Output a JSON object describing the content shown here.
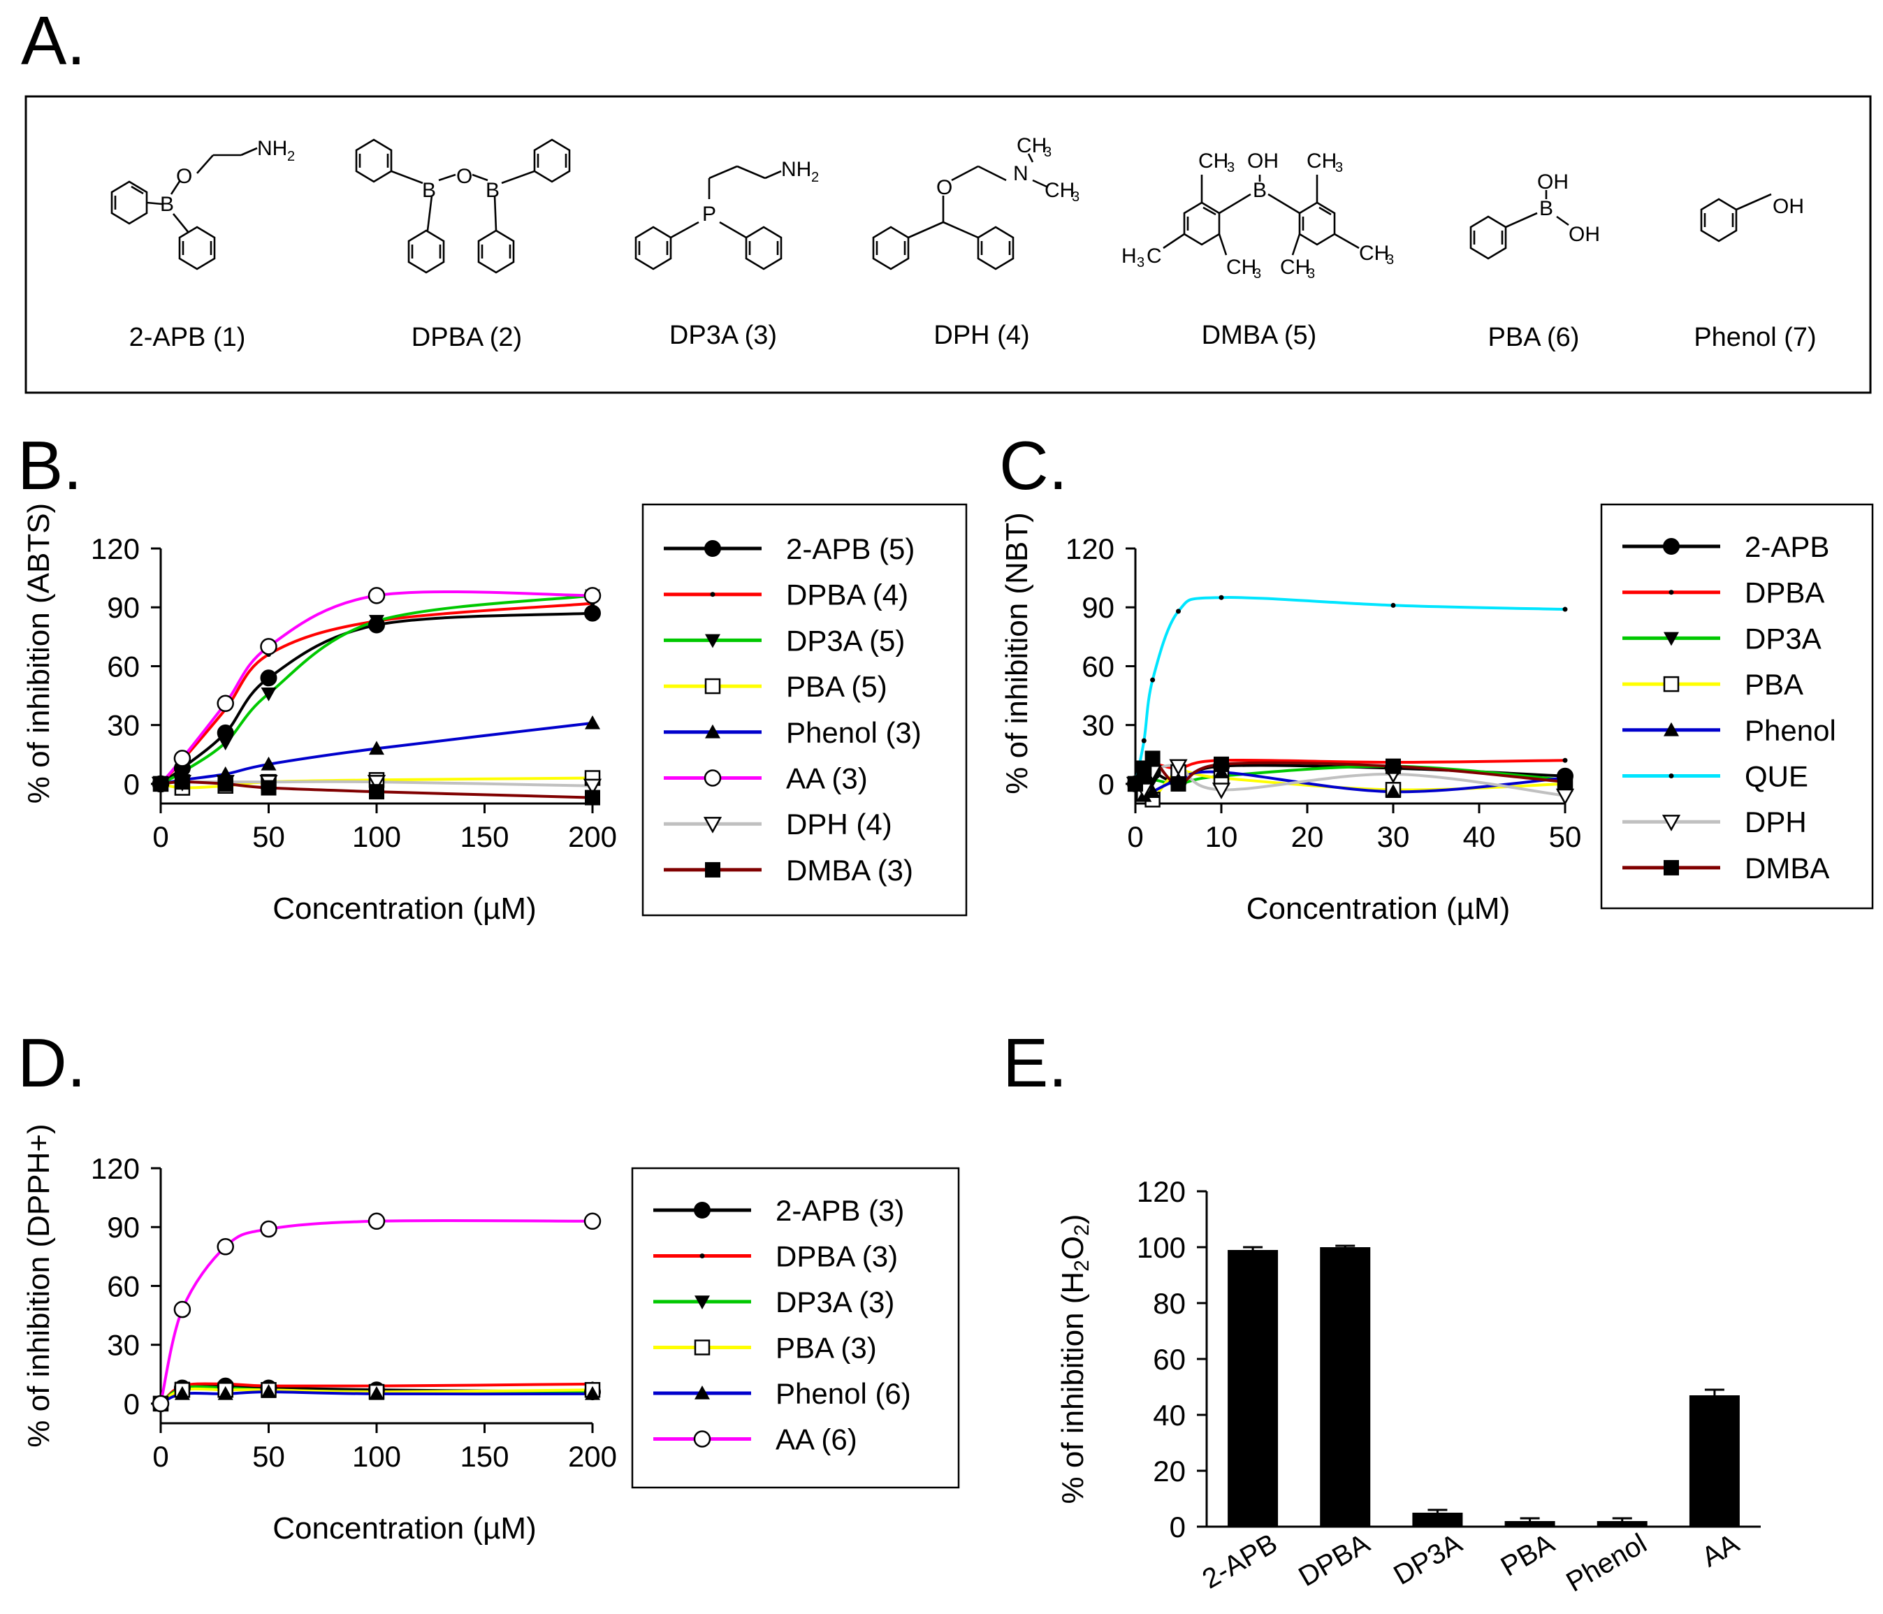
{
  "panels": {
    "A": {
      "letter": "A."
    },
    "B": {
      "letter": "B."
    },
    "C": {
      "letter": "C."
    },
    "D": {
      "letter": "D."
    },
    "E": {
      "letter": "E."
    }
  },
  "structures": {
    "compounds": [
      {
        "label": "2-APB (1)",
        "atoms": [
          "O",
          "NH",
          "2",
          "B"
        ]
      },
      {
        "label": "DPBA (2)",
        "atoms": [
          "B",
          "O",
          "B"
        ]
      },
      {
        "label": "DP3A (3)",
        "atoms": [
          "P",
          "NH",
          "2"
        ]
      },
      {
        "label": "DPH (4)",
        "atoms": [
          "O",
          "N",
          "CH",
          "3",
          "CH",
          "3"
        ]
      },
      {
        "label": "DMBA (5)",
        "atoms": [
          "CH",
          "3",
          "OH",
          "B",
          "CH",
          "3",
          "H",
          "3",
          "C",
          "CH",
          "3",
          "CH",
          "3",
          "CH",
          "3"
        ]
      },
      {
        "label": "PBA (6)",
        "atoms": [
          "OH",
          "B",
          "OH"
        ]
      },
      {
        "label": "Phenol (7)",
        "atoms": [
          "OH"
        ]
      }
    ]
  },
  "colors": {
    "black": "#000000",
    "red": "#ff0000",
    "green": "#00c800",
    "yellow": "#ffff00",
    "blue": "#0000cc",
    "magenta": "#ff00ff",
    "gray": "#c0c0c0",
    "darkred": "#800000",
    "cyan": "#00e5ff"
  },
  "chart_data": [
    {
      "id": "B",
      "type": "line",
      "title": "",
      "xlabel": "Concentration (µM)",
      "ylabel": "% of inhibition (ABTS)",
      "xlim": [
        0,
        200
      ],
      "ylim": [
        -10,
        120
      ],
      "xticks": [
        "0",
        "50",
        "100",
        "150",
        "200"
      ],
      "yticks": [
        "0",
        "30",
        "60",
        "90",
        "120"
      ],
      "xtick_values": [
        0,
        50,
        100,
        150,
        200
      ],
      "ytick_values": [
        0,
        30,
        60,
        90,
        120
      ],
      "legend_placement": "right",
      "series": [
        {
          "name": "2-APB (5)",
          "color": "#000000",
          "marker": "circle-filled",
          "x": [
            0,
            10,
            30,
            50,
            100,
            200
          ],
          "y": [
            0,
            8,
            26,
            54,
            81,
            87
          ]
        },
        {
          "name": "DPBA (4)",
          "color": "#ff0000",
          "marker": "dot",
          "x": [
            0,
            10,
            30,
            50,
            100,
            200
          ],
          "y": [
            0,
            12,
            38,
            66,
            83,
            92
          ]
        },
        {
          "name": "DP3A (5)",
          "color": "#00c800",
          "marker": "triangle-down-filled",
          "x": [
            0,
            10,
            30,
            50,
            100,
            200
          ],
          "y": [
            0,
            6,
            21,
            46,
            83,
            96
          ]
        },
        {
          "name": "PBA (5)",
          "color": "#ffff00",
          "marker": "square-open",
          "x": [
            0,
            10,
            30,
            50,
            100,
            200
          ],
          "y": [
            0,
            -2,
            -1,
            1,
            2,
            3
          ]
        },
        {
          "name": "Phenol (3)",
          "color": "#0000cc",
          "marker": "triangle-up-filled",
          "x": [
            0,
            10,
            30,
            50,
            100,
            200
          ],
          "y": [
            0,
            2,
            5,
            10,
            18,
            31
          ]
        },
        {
          "name": "AA (3)",
          "color": "#ff00ff",
          "marker": "circle-open",
          "x": [
            0,
            10,
            30,
            50,
            100,
            200
          ],
          "y": [
            0,
            13,
            41,
            70,
            96,
            96
          ]
        },
        {
          "name": "DPH (4)",
          "color": "#c0c0c0",
          "marker": "triangle-down-open",
          "x": [
            0,
            10,
            30,
            50,
            100,
            200
          ],
          "y": [
            0,
            1,
            1,
            1,
            1,
            -1
          ]
        },
        {
          "name": "DMBA (3)",
          "color": "#800000",
          "marker": "square-filled",
          "x": [
            0,
            10,
            30,
            50,
            100,
            200
          ],
          "y": [
            0,
            1,
            0,
            -2,
            -4,
            -7
          ]
        }
      ]
    },
    {
      "id": "C",
      "type": "line",
      "title": "",
      "xlabel": "Concentration (µM)",
      "ylabel": "% of inhibition (NBT)",
      "xlim": [
        0,
        50
      ],
      "ylim": [
        -10,
        120
      ],
      "xticks": [
        "0",
        "10",
        "20",
        "30",
        "40",
        "50"
      ],
      "yticks": [
        "0",
        "30",
        "60",
        "90",
        "120"
      ],
      "xtick_values": [
        0,
        10,
        20,
        30,
        40,
        50
      ],
      "ytick_values": [
        0,
        30,
        60,
        90,
        120
      ],
      "legend_placement": "right",
      "series": [
        {
          "name": "2-APB",
          "color": "#000000",
          "marker": "circle-filled",
          "x": [
            0,
            1,
            2,
            5,
            10,
            30,
            50
          ],
          "y": [
            0,
            3,
            6,
            1,
            9,
            8,
            4
          ]
        },
        {
          "name": "DPBA",
          "color": "#ff0000",
          "marker": "dot",
          "x": [
            0,
            1,
            2,
            5,
            10,
            30,
            50
          ],
          "y": [
            0,
            4,
            10,
            8,
            12,
            11,
            12
          ]
        },
        {
          "name": "DP3A",
          "color": "#00c800",
          "marker": "triangle-down-filled",
          "x": [
            0,
            1,
            2,
            5,
            10,
            30,
            50
          ],
          "y": [
            0,
            -2,
            2,
            0,
            4,
            9,
            2
          ]
        },
        {
          "name": "PBA",
          "color": "#ffff00",
          "marker": "square-open",
          "x": [
            0,
            1,
            2,
            5,
            10,
            30,
            50
          ],
          "y": [
            0,
            -5,
            -8,
            6,
            3,
            -3,
            0
          ]
        },
        {
          "name": "Phenol",
          "color": "#0000cc",
          "marker": "triangle-up-filled",
          "x": [
            0,
            1,
            2,
            5,
            10,
            30,
            50
          ],
          "y": [
            0,
            -6,
            -4,
            2,
            6,
            -4,
            3
          ]
        },
        {
          "name": "QUE",
          "color": "#00e5ff",
          "marker": "dot",
          "x": [
            0,
            1,
            2,
            5,
            10,
            30,
            50
          ],
          "y": [
            0,
            22,
            53,
            88,
            95,
            91,
            89
          ]
        },
        {
          "name": "DPH",
          "color": "#c0c0c0",
          "marker": "triangle-down-open",
          "x": [
            0,
            1,
            2,
            5,
            10,
            30,
            50
          ],
          "y": [
            0,
            -3,
            6,
            9,
            -3,
            5,
            -6
          ]
        },
        {
          "name": "DMBA",
          "color": "#800000",
          "marker": "square-filled",
          "x": [
            0,
            1,
            2,
            5,
            10,
            30,
            50
          ],
          "y": [
            0,
            8,
            13,
            0,
            10,
            9,
            1
          ]
        }
      ]
    },
    {
      "id": "D",
      "type": "line",
      "title": "",
      "xlabel": "Concentration (µM)",
      "ylabel": "% of inhibition (DPPH+)",
      "xlim": [
        0,
        200
      ],
      "ylim": [
        -10,
        120
      ],
      "xticks": [
        "0",
        "50",
        "100",
        "150",
        "200"
      ],
      "yticks": [
        "0",
        "30",
        "60",
        "90",
        "120"
      ],
      "xtick_values": [
        0,
        50,
        100,
        150,
        200
      ],
      "ytick_values": [
        0,
        30,
        60,
        90,
        120
      ],
      "legend_placement": "right",
      "series": [
        {
          "name": "2-APB (3)",
          "color": "#000000",
          "marker": "circle-filled",
          "x": [
            0,
            10,
            30,
            50,
            100,
            200
          ],
          "y": [
            0,
            8,
            9,
            8,
            7,
            6
          ]
        },
        {
          "name": "DPBA (3)",
          "color": "#ff0000",
          "marker": "dot",
          "x": [
            0,
            10,
            30,
            50,
            100,
            200
          ],
          "y": [
            0,
            9,
            10,
            9,
            9,
            10
          ]
        },
        {
          "name": "DP3A (3)",
          "color": "#00c800",
          "marker": "triangle-down-filled",
          "x": [
            0,
            10,
            30,
            50,
            100,
            200
          ],
          "y": [
            0,
            8,
            8,
            7,
            6,
            6
          ]
        },
        {
          "name": "PBA (3)",
          "color": "#ffff00",
          "marker": "square-open",
          "x": [
            0,
            10,
            30,
            50,
            100,
            200
          ],
          "y": [
            0,
            7,
            7,
            7,
            6,
            7
          ]
        },
        {
          "name": "Phenol (6)",
          "color": "#0000cc",
          "marker": "triangle-up-filled",
          "x": [
            0,
            10,
            30,
            50,
            100,
            200
          ],
          "y": [
            0,
            5,
            5,
            6,
            5,
            5
          ]
        },
        {
          "name": "AA (6)",
          "color": "#ff00ff",
          "marker": "circle-open",
          "x": [
            0,
            10,
            30,
            50,
            100,
            200
          ],
          "y": [
            0,
            48,
            80,
            89,
            93,
            93
          ]
        }
      ]
    },
    {
      "id": "E",
      "type": "bar",
      "title": "",
      "xlabel": "",
      "ylabel_parts": [
        "% of inhibition (H",
        "2",
        "O",
        "2",
        ")"
      ],
      "categories": [
        "2-APB",
        "DPBA",
        "DP3A",
        "PBA",
        "Phenol",
        "AA"
      ],
      "values": [
        99,
        100,
        5,
        2,
        2,
        47
      ],
      "errors": [
        1,
        0.5,
        1,
        1,
        1,
        2
      ],
      "ylim": [
        0,
        120
      ],
      "yticks": [
        "0",
        "20",
        "40",
        "60",
        "80",
        "100",
        "120"
      ],
      "ytick_values": [
        0,
        20,
        40,
        60,
        80,
        100,
        120
      ]
    }
  ]
}
